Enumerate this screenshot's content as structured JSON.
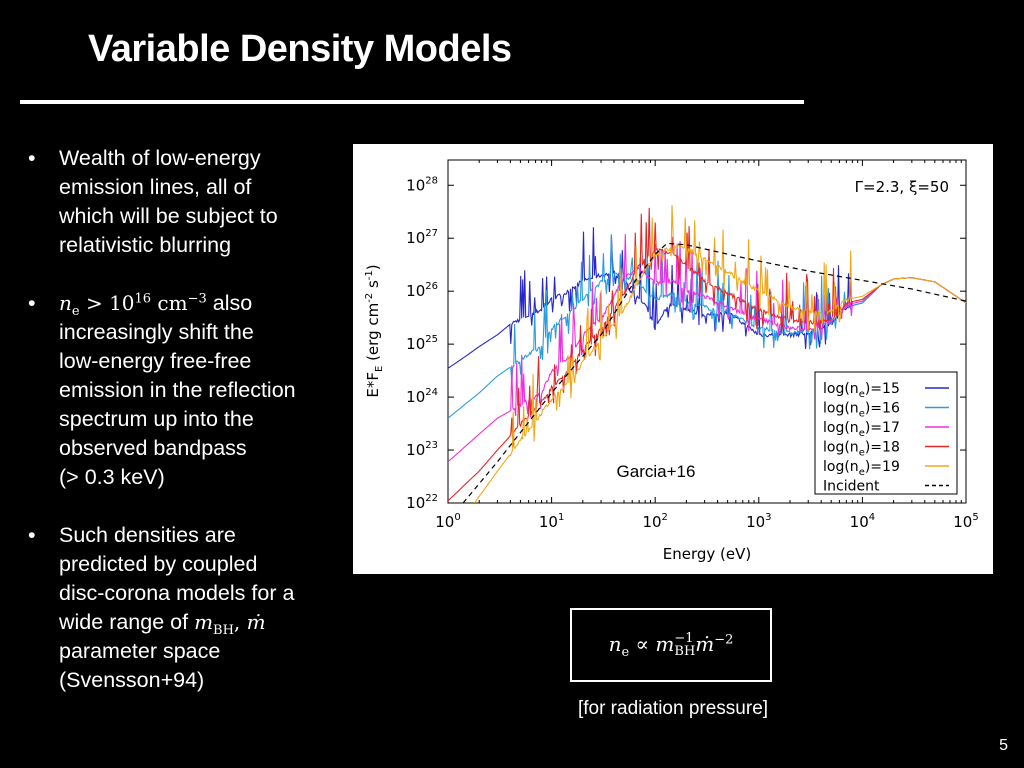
{
  "slide": {
    "title": "Variable Density Models",
    "page_number": "5"
  },
  "bullets": [
    {
      "lines": [
        "Wealth of low-energy",
        "emission lines, all of",
        "which will be subject to",
        "relativistic blurring"
      ]
    },
    {
      "line1_math": "n",
      "line1_math_sub": "e",
      "line1_rel": " > 10",
      "line1_exp": "16",
      "line1_unit": " cm",
      "line1_unit_exp": "−3",
      "line1_after": " also",
      "lines": [
        "increasingly shift the",
        "low-energy free-free",
        "emission in the reflection",
        "spectrum up into the",
        "observed bandpass",
        "(> 0.3 keV)"
      ]
    },
    {
      "lines": [
        "Such densities are",
        "predicted by coupled",
        "disc-corona models for a"
      ],
      "line_math_prefix": "wide range of ",
      "math_a": "m",
      "math_a_sub": "BH",
      "math_sep": ", ",
      "math_b": "ṁ",
      "lines_after": [
        "parameter space",
        "(Svensson+94)"
      ]
    }
  ],
  "formula": {
    "lhs": "n",
    "lhs_sub": "e",
    "prop": " ∝ ",
    "m": "m",
    "m_exp": "−1",
    "m_sub": "BH",
    "mdot": "ṁ",
    "mdot_exp": "−2"
  },
  "formula_caption": "[for radiation pressure]",
  "colors": {
    "n15": "#2828c8",
    "n16": "#2a9de0",
    "n17": "#ee2ee0",
    "n18": "#e02828",
    "n19": "#f0a818",
    "incident": "#000000"
  },
  "chart_data": {
    "type": "line",
    "annotation": "Γ=2.3, ξ=50",
    "source_label": "Garcia+16",
    "xlabel": "Energy (eV)",
    "ylabel_parts": {
      "a": "E*F",
      "a_sub": "E",
      "b": " (erg cm",
      "b_exp": "-2",
      "c": " s",
      "c_exp": "-1",
      "d": ")"
    },
    "x_scale": "log",
    "y_scale": "log",
    "xlim": [
      1,
      100000
    ],
    "ylim": [
      1e+22,
      3e+28
    ],
    "x_ticks": [
      {
        "base": "10",
        "exp": "0",
        "v": 1
      },
      {
        "base": "10",
        "exp": "1",
        "v": 10
      },
      {
        "base": "10",
        "exp": "2",
        "v": 100
      },
      {
        "base": "10",
        "exp": "3",
        "v": 1000
      },
      {
        "base": "10",
        "exp": "4",
        "v": 10000
      },
      {
        "base": "10",
        "exp": "5",
        "v": 100000
      }
    ],
    "y_ticks": [
      {
        "base": "10",
        "exp": "22",
        "v": 1e+22
      },
      {
        "base": "10",
        "exp": "23",
        "v": 1e+23
      },
      {
        "base": "10",
        "exp": "24",
        "v": 1e+24
      },
      {
        "base": "10",
        "exp": "25",
        "v": 1e+25
      },
      {
        "base": "10",
        "exp": "26",
        "v": 1e+26
      },
      {
        "base": "10",
        "exp": "27",
        "v": 1e+27
      },
      {
        "base": "10",
        "exp": "28",
        "v": 1e+28
      }
    ],
    "legend_position": "bottom-right",
    "series": [
      {
        "key": "n15",
        "label_pre": "log(n",
        "label_sub": "e",
        "label_post": ")=15",
        "style": "solid",
        "points": [
          [
            1,
            3.5e+24
          ],
          [
            1.5,
            6e+24
          ],
          [
            2,
            9e+24
          ],
          [
            3,
            1.5e+25
          ],
          [
            4,
            2.4e+25
          ],
          [
            6,
            3.5e+25
          ],
          [
            8,
            4.5e+25
          ],
          [
            10,
            7e+25
          ],
          [
            15,
            1e+26
          ],
          [
            20,
            1.6e+26
          ],
          [
            30,
            2e+26
          ],
          [
            40,
            2.2e+26
          ],
          [
            50,
            1.6e+26
          ],
          [
            60,
            9e+25
          ],
          [
            80,
            5.5e+25
          ],
          [
            100,
            2e+25
          ],
          [
            120,
            4e+25
          ],
          [
            150,
            6e+25
          ],
          [
            200,
            4.5e+25
          ],
          [
            300,
            3.5e+25
          ],
          [
            500,
            4e+25
          ],
          [
            700,
            2.5e+25
          ],
          [
            1000,
            1.5e+25
          ],
          [
            2000,
            1.5e+25
          ],
          [
            3000,
            1.6e+25
          ],
          [
            5000,
            2.5e+25
          ],
          [
            7000,
            5e+25
          ],
          [
            10000,
            6e+25
          ],
          [
            15000,
            1.3e+26
          ],
          [
            20000,
            1.7e+26
          ],
          [
            30000,
            1.8e+26
          ],
          [
            50000,
            1.5e+26
          ],
          [
            100000,
            6e+25
          ]
        ]
      },
      {
        "key": "n16",
        "label_pre": "log(n",
        "label_sub": "e",
        "label_post": ")=16",
        "style": "solid",
        "points": [
          [
            1,
            4e+23
          ],
          [
            2,
            1.2e+24
          ],
          [
            3,
            2.5e+24
          ],
          [
            5,
            5e+24
          ],
          [
            8,
            9e+24
          ],
          [
            10,
            2e+25
          ],
          [
            15,
            4e+25
          ],
          [
            20,
            7e+25
          ],
          [
            30,
            1.5e+26
          ],
          [
            40,
            2.2e+26
          ],
          [
            50,
            2e+26
          ],
          [
            70,
            1.4e+26
          ],
          [
            100,
            7e+25
          ],
          [
            150,
            9e+25
          ],
          [
            200,
            6e+25
          ],
          [
            300,
            5e+25
          ],
          [
            500,
            4e+25
          ],
          [
            1000,
            2e+25
          ],
          [
            2000,
            1.6e+25
          ],
          [
            3000,
            1.8e+25
          ],
          [
            5000,
            2.6e+25
          ],
          [
            7000,
            5e+25
          ],
          [
            10000,
            6e+25
          ],
          [
            15000,
            1.3e+26
          ],
          [
            20000,
            1.7e+26
          ],
          [
            30000,
            1.8e+26
          ],
          [
            50000,
            1.5e+26
          ],
          [
            100000,
            6e+25
          ]
        ]
      },
      {
        "key": "n17",
        "label_pre": "log(n",
        "label_sub": "e",
        "label_post": ")=17",
        "style": "solid",
        "points": [
          [
            1,
            6e+22
          ],
          [
            2,
            2e+23
          ],
          [
            3,
            4e+23
          ],
          [
            5,
            7e+23
          ],
          [
            8,
            1.2e+24
          ],
          [
            10,
            3e+24
          ],
          [
            15,
            6e+24
          ],
          [
            20,
            1.5e+25
          ],
          [
            30,
            3e+25
          ],
          [
            40,
            8e+25
          ],
          [
            50,
            1.8e+26
          ],
          [
            70,
            2.6e+26
          ],
          [
            100,
            1.4e+26
          ],
          [
            150,
            1.6e+26
          ],
          [
            200,
            1e+26
          ],
          [
            300,
            8e+25
          ],
          [
            500,
            5e+25
          ],
          [
            1000,
            3e+25
          ],
          [
            2000,
            2e+25
          ],
          [
            3000,
            1.9e+25
          ],
          [
            5000,
            2.8e+25
          ],
          [
            7000,
            5.5e+25
          ],
          [
            10000,
            6.5e+25
          ],
          [
            15000,
            1.3e+26
          ],
          [
            20000,
            1.7e+26
          ],
          [
            30000,
            1.8e+26
          ],
          [
            50000,
            1.5e+26
          ],
          [
            100000,
            6e+25
          ]
        ]
      },
      {
        "key": "n18",
        "label_pre": "log(n",
        "label_sub": "e",
        "label_post": ")=18",
        "style": "solid",
        "points": [
          [
            1,
            1.1e+22
          ],
          [
            2,
            4e+22
          ],
          [
            3,
            1e+23
          ],
          [
            5,
            3e+23
          ],
          [
            8,
            8e+23
          ],
          [
            10,
            1.5e+24
          ],
          [
            15,
            3.5e+24
          ],
          [
            20,
            8e+24
          ],
          [
            30,
            2e+25
          ],
          [
            50,
            9e+25
          ],
          [
            70,
            3e+26
          ],
          [
            100,
            6e+26
          ],
          [
            150,
            5e+26
          ],
          [
            200,
            3e+26
          ],
          [
            300,
            1.6e+26
          ],
          [
            500,
            9e+25
          ],
          [
            1000,
            4.5e+25
          ],
          [
            2000,
            2.8e+25
          ],
          [
            3000,
            2.5e+25
          ],
          [
            5000,
            3e+25
          ],
          [
            7000,
            6e+25
          ],
          [
            10000,
            7e+25
          ],
          [
            15000,
            1.3e+26
          ],
          [
            20000,
            1.7e+26
          ],
          [
            30000,
            1.8e+26
          ],
          [
            50000,
            1.5e+26
          ],
          [
            100000,
            6e+25
          ]
        ]
      },
      {
        "key": "n19",
        "label_pre": "log(n",
        "label_sub": "e",
        "label_post": ")=19",
        "style": "solid",
        "points": [
          [
            1.8,
            1e+22
          ],
          [
            3,
            4e+22
          ],
          [
            5,
            1.5e+23
          ],
          [
            8,
            5e+23
          ],
          [
            10,
            9e+23
          ],
          [
            15,
            2e+24
          ],
          [
            20,
            4.5e+24
          ],
          [
            30,
            1.2e+25
          ],
          [
            50,
            4.5e+25
          ],
          [
            70,
            1.6e+26
          ],
          [
            100,
            5e+26
          ],
          [
            150,
            7e+26
          ],
          [
            200,
            6.5e+26
          ],
          [
            300,
            4e+26
          ],
          [
            500,
            2.3e+26
          ],
          [
            1000,
            1e+26
          ],
          [
            2000,
            5e+25
          ],
          [
            3000,
            4e+25
          ],
          [
            5000,
            4e+25
          ],
          [
            7000,
            7e+25
          ],
          [
            10000,
            8e+25
          ],
          [
            15000,
            1.3e+26
          ],
          [
            20000,
            1.7e+26
          ],
          [
            30000,
            1.8e+26
          ],
          [
            50000,
            1.5e+26
          ],
          [
            100000,
            6e+25
          ]
        ]
      },
      {
        "key": "incident",
        "label_pre": "Incident",
        "label_sub": "",
        "label_post": "",
        "style": "dashed",
        "points": [
          [
            1.4,
            1e+22
          ],
          [
            3,
            6e+22
          ],
          [
            10,
            1.2e+24
          ],
          [
            30,
            1.5e+25
          ],
          [
            60,
            1.3e+26
          ],
          [
            100,
            5e+26
          ],
          [
            130,
            8e+26
          ],
          [
            200,
            7.5e+26
          ],
          [
            500,
            5e+26
          ],
          [
            1000,
            3.7e+26
          ],
          [
            3000,
            2.4e+26
          ],
          [
            10000,
            1.6e+26
          ],
          [
            30000,
            1.1e+26
          ],
          [
            100000,
            6.5e+25
          ]
        ]
      }
    ]
  }
}
